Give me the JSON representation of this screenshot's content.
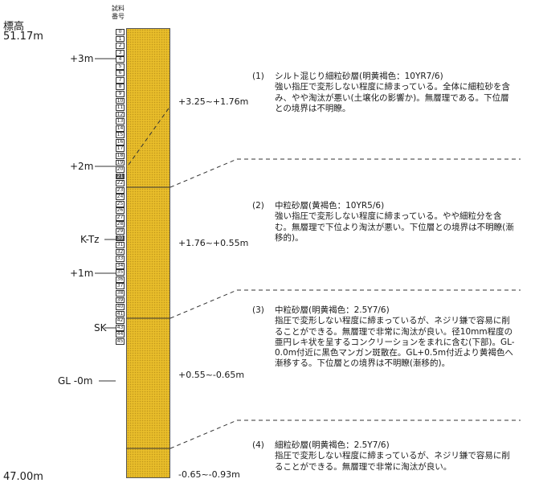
{
  "header": {
    "elevation_label": "標高",
    "top_elevation": "51.17m",
    "bottom_elevation": "47.00m",
    "sample_number_header": [
      "試料",
      "番号"
    ]
  },
  "elevation_marks": [
    "+3m",
    "+2m",
    "+1m",
    "GL -0m"
  ],
  "tephra_marks": [
    "K-Tz",
    "SK"
  ],
  "sample_numbers": [
    "0",
    "1",
    "2",
    "3",
    "4",
    "5",
    "6",
    "7",
    "8",
    "9",
    "10",
    "11",
    "12",
    "13",
    "14",
    "15",
    "16",
    "17",
    "18",
    "19",
    "20",
    "21",
    "22",
    "23",
    "24",
    "25",
    "26",
    "27",
    "28",
    "29",
    "30",
    "31",
    "32",
    "33",
    "34",
    "35",
    "36",
    "37",
    "38",
    "39",
    "40",
    "41",
    "42",
    "43",
    "44",
    "45"
  ],
  "highlighted_samples": [
    "21",
    "30"
  ],
  "ranges": [
    "+3.25~+1.76m",
    "+1.76~+0.55m",
    "+0.55~-0.65m",
    "-0.65~-0.93m"
  ],
  "layers": [
    {
      "num": "(1)",
      "title": "シルト混じり細粒砂層(明黄褐色：10YR7/6)",
      "body": "強い指圧で変形しない程度に締まっている。全体に細粒砂を含み、やや淘汰が悪い(土壌化の影響か)。無層理である。下位層との境界は不明瞭。"
    },
    {
      "num": "(2)",
      "title": "中粒砂層(黄褐色：10YR5/6)",
      "body": "強い指圧で変形しない程度に締まっている。やや細粒分を含む。無層理で下位より淘汰が悪い。下位層との境界は不明瞭(漸移的)。"
    },
    {
      "num": "(3)",
      "title": "中粒砂層(明黄褐色：2.5Y7/6)",
      "body": "指圧で変形しない程度に締まっているが、ネジリ鎌で容易に削ることができる。無層理で非常に淘汰が良い。径10mm程度の亜円レキ状を呈するコンクリーションをまれに含む(下部)。GL-0.0m付近に黒色マンガン斑散在。GL+0.5m付近より黄褐色へ漸移する。下位層との境界は不明瞭(漸移的)。"
    },
    {
      "num": "(4)",
      "title": "細粒砂層(明黄褐色：2.5Y7/6)",
      "body": "指圧で変形しない程度に締まっているが、ネジリ鎌で容易に削ることができる。無層理で非常に淘汰が良い。"
    }
  ]
}
